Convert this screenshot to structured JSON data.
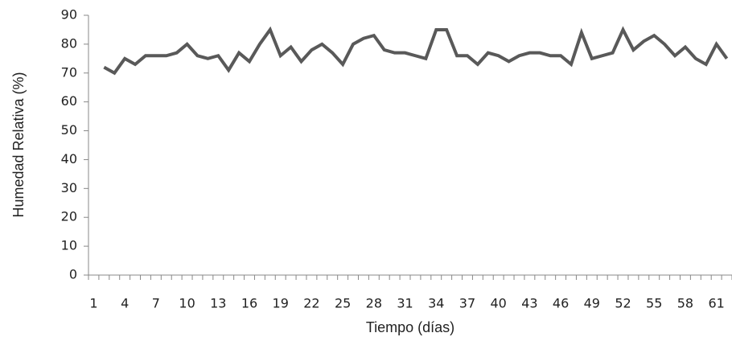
{
  "chart_data": {
    "type": "line",
    "x_label": "Tiempo (días)",
    "y_label": "Humedad Relativa (%)",
    "categories": [
      1,
      null,
      null,
      4,
      null,
      null,
      7,
      null,
      null,
      10,
      null,
      null,
      13,
      null,
      null,
      16,
      null,
      null,
      19,
      null,
      null,
      22,
      null,
      null,
      25,
      null,
      null,
      28,
      null,
      null,
      31,
      null,
      null,
      34,
      null,
      null,
      37,
      null,
      null,
      40,
      null,
      null,
      43,
      null,
      null,
      46,
      null,
      null,
      49,
      null,
      null,
      52,
      null,
      null,
      55,
      null,
      null,
      58,
      null,
      null,
      61,
      null
    ],
    "values": [
      null,
      72,
      70,
      75,
      73,
      76,
      76,
      76,
      77,
      80,
      76,
      75,
      76,
      71,
      77,
      74,
      80,
      85,
      76,
      79,
      74,
      78,
      80,
      77,
      73,
      80,
      82,
      83,
      78,
      77,
      77,
      76,
      75,
      85,
      85,
      76,
      76,
      73,
      77,
      76,
      74,
      76,
      77,
      77,
      76,
      76,
      73,
      84,
      75,
      76,
      77,
      85,
      78,
      81,
      83,
      80,
      76,
      79,
      75,
      73,
      80,
      75
    ],
    "color": "#595959",
    "ylim": [
      0,
      90
    ],
    "yticks": [
      0,
      10,
      20,
      30,
      40,
      50,
      60,
      70,
      80,
      90
    ],
    "grid": false
  }
}
